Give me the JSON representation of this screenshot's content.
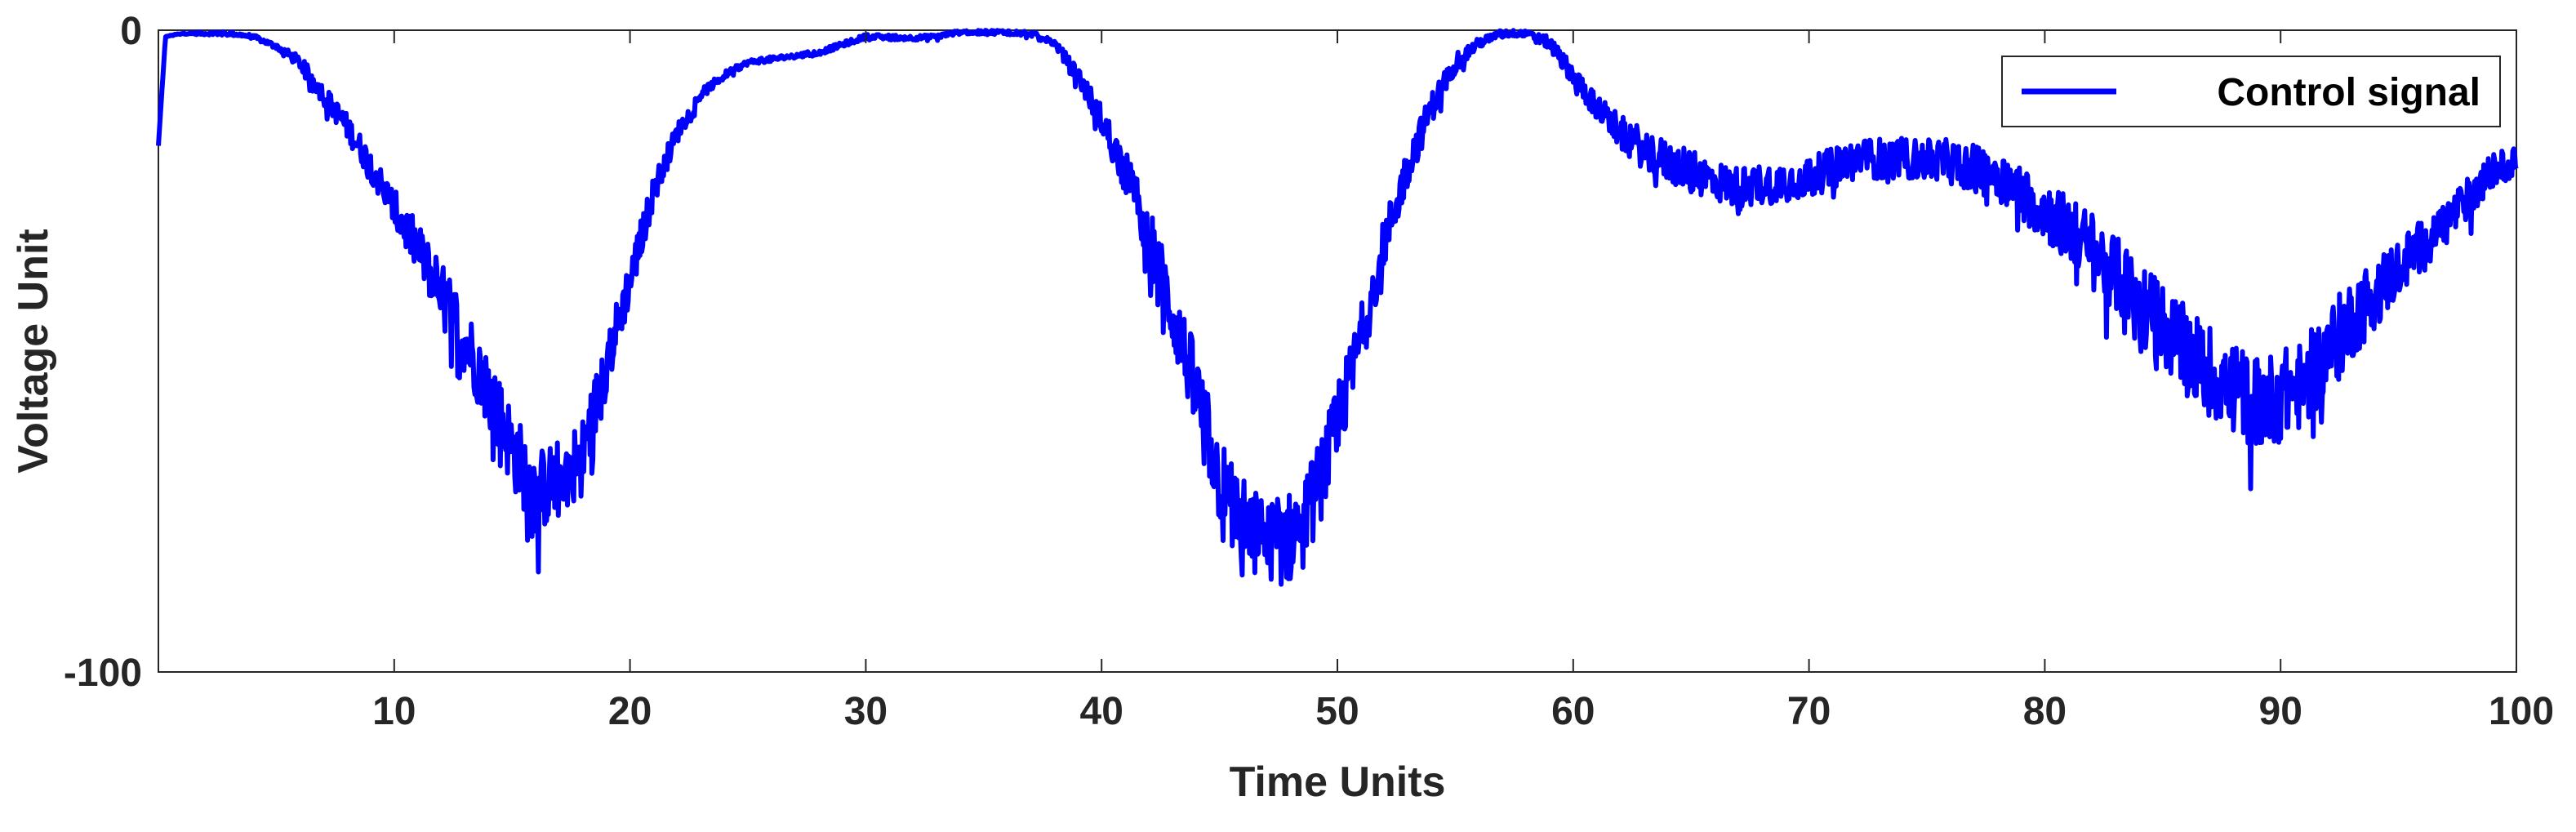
{
  "chart_data": {
    "type": "line",
    "title": "",
    "xlabel": "Time Units",
    "ylabel": "Voltage Unit",
    "xlim": [
      0,
      100
    ],
    "ylim": [
      -100,
      0
    ],
    "xticks": [
      10,
      20,
      30,
      40,
      50,
      60,
      70,
      80,
      90,
      100
    ],
    "xtick_labels": [
      "10",
      "20",
      "30",
      "40",
      "50",
      "60",
      "70",
      "80",
      "90",
      "100"
    ],
    "yticks": [
      -100,
      0
    ],
    "ytick_labels": [
      "-100",
      "0"
    ],
    "grid": false,
    "legend_position": "top-right",
    "series": [
      {
        "name": "Control signal",
        "color": "#0000ff",
        "noisy": true,
        "envelope": [
          [
            0,
            -18
          ],
          [
            0.3,
            -1
          ],
          [
            1,
            -0.5
          ],
          [
            3,
            -0.5
          ],
          [
            4,
            -1
          ],
          [
            5,
            -2.5
          ],
          [
            6,
            -5
          ],
          [
            7,
            -10
          ],
          [
            8,
            -15
          ],
          [
            9,
            -21
          ],
          [
            10,
            -28
          ],
          [
            11,
            -34
          ],
          [
            12,
            -41
          ],
          [
            13,
            -48
          ],
          [
            14,
            -56
          ],
          [
            15,
            -65
          ],
          [
            16,
            -72
          ],
          [
            17,
            -70
          ],
          [
            18,
            -66
          ],
          [
            19,
            -52
          ],
          [
            20,
            -39
          ],
          [
            21,
            -25
          ],
          [
            22,
            -16
          ],
          [
            23,
            -10
          ],
          [
            24,
            -7
          ],
          [
            25,
            -5
          ],
          [
            26,
            -4.5
          ],
          [
            28,
            -3.5
          ],
          [
            30,
            -1
          ],
          [
            32,
            -1.2
          ],
          [
            33,
            -1
          ],
          [
            34,
            -0.3
          ],
          [
            36,
            -0.3
          ],
          [
            37,
            -0.5
          ],
          [
            38,
            -2
          ],
          [
            39,
            -7
          ],
          [
            40,
            -14
          ],
          [
            41,
            -22
          ],
          [
            42,
            -32
          ],
          [
            43,
            -44
          ],
          [
            44,
            -56
          ],
          [
            45,
            -70
          ],
          [
            46,
            -77
          ],
          [
            47,
            -80
          ],
          [
            48,
            -79
          ],
          [
            49,
            -73
          ],
          [
            50,
            -62
          ],
          [
            51,
            -48
          ],
          [
            52,
            -33
          ],
          [
            53,
            -21
          ],
          [
            54,
            -12
          ],
          [
            55,
            -5
          ],
          [
            56,
            -2
          ],
          [
            57,
            -0.5
          ],
          [
            58,
            -0.5
          ],
          [
            59,
            -2
          ],
          [
            60,
            -7
          ],
          [
            61,
            -12
          ],
          [
            62,
            -16
          ],
          [
            63,
            -18.5
          ],
          [
            64,
            -20.5
          ],
          [
            65,
            -22
          ],
          [
            66,
            -23.5
          ],
          [
            67,
            -24.5
          ],
          [
            68,
            -24
          ],
          [
            70,
            -23
          ],
          [
            72,
            -20
          ],
          [
            74,
            -20
          ],
          [
            76,
            -20.5
          ],
          [
            78,
            -22.5
          ],
          [
            80,
            -28
          ],
          [
            82,
            -34
          ],
          [
            84,
            -42
          ],
          [
            86,
            -50
          ],
          [
            88,
            -56
          ],
          [
            89,
            -58
          ],
          [
            90,
            -57
          ],
          [
            91,
            -55
          ],
          [
            92,
            -50
          ],
          [
            93,
            -45
          ],
          [
            95,
            -37
          ],
          [
            97,
            -30
          ],
          [
            99,
            -22
          ],
          [
            100,
            -20
          ]
        ],
        "noise": [
          [
            0,
            0
          ],
          [
            2,
            0.3
          ],
          [
            5,
            0.5
          ],
          [
            7,
            2
          ],
          [
            9,
            3
          ],
          [
            11,
            5
          ],
          [
            13,
            7
          ],
          [
            15,
            8
          ],
          [
            17,
            8
          ],
          [
            19,
            6
          ],
          [
            21,
            3
          ],
          [
            23,
            1
          ],
          [
            25,
            0.5
          ],
          [
            30,
            0.5
          ],
          [
            35,
            0.4
          ],
          [
            38,
            0.6
          ],
          [
            40,
            3
          ],
          [
            42,
            6
          ],
          [
            44,
            8
          ],
          [
            46,
            9
          ],
          [
            48,
            9
          ],
          [
            50,
            8
          ],
          [
            52,
            5
          ],
          [
            54,
            3
          ],
          [
            56,
            1
          ],
          [
            58,
            0.5
          ],
          [
            60,
            2
          ],
          [
            63,
            4
          ],
          [
            65,
            4
          ],
          [
            70,
            4
          ],
          [
            75,
            4
          ],
          [
            78,
            5
          ],
          [
            80,
            6
          ],
          [
            84,
            8
          ],
          [
            87,
            9
          ],
          [
            90,
            9
          ],
          [
            93,
            8
          ],
          [
            96,
            5
          ],
          [
            100,
            3
          ]
        ]
      }
    ]
  }
}
